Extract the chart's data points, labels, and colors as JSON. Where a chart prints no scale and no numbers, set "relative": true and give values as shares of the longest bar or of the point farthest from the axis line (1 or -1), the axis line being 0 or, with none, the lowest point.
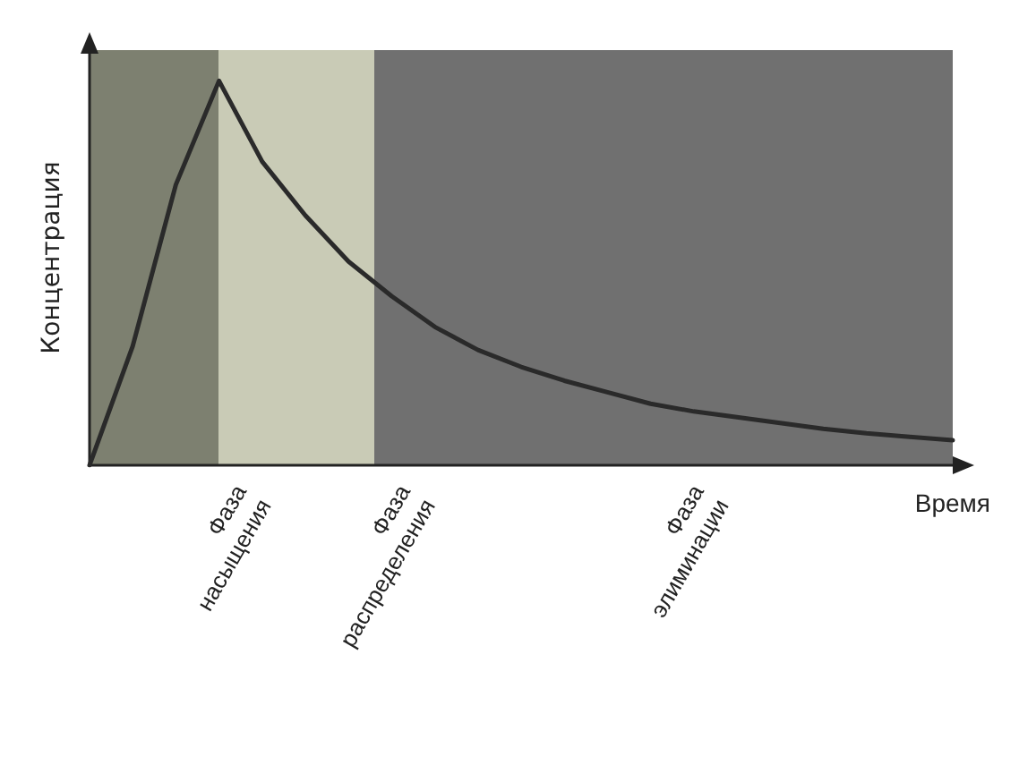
{
  "chart_data": {
    "type": "line",
    "relative": true,
    "xlabel": "Время",
    "ylabel": "Концентрация",
    "marker": "none",
    "line_style": "solid",
    "categories": [
      null,
      null,
      null,
      null,
      null,
      null,
      null,
      null,
      null,
      null,
      null,
      null,
      null,
      null,
      null,
      null,
      null,
      null,
      null,
      null,
      null
    ],
    "series": [
      {
        "color": "#2a2a2a",
        "values": [
          0,
          0.31,
          0.73,
          1.0,
          0.79,
          0.65,
          0.53,
          0.44,
          0.36,
          0.3,
          0.256,
          0.22,
          0.19,
          0.16,
          0.14,
          0.125,
          0.11,
          0.095,
          0.083,
          0.074,
          0.065
        ]
      }
    ],
    "annotations": [
      "Фаза\nнасыщения",
      "Фаза\nраспределения",
      "Фаза\nэлиминации"
    ]
  }
}
